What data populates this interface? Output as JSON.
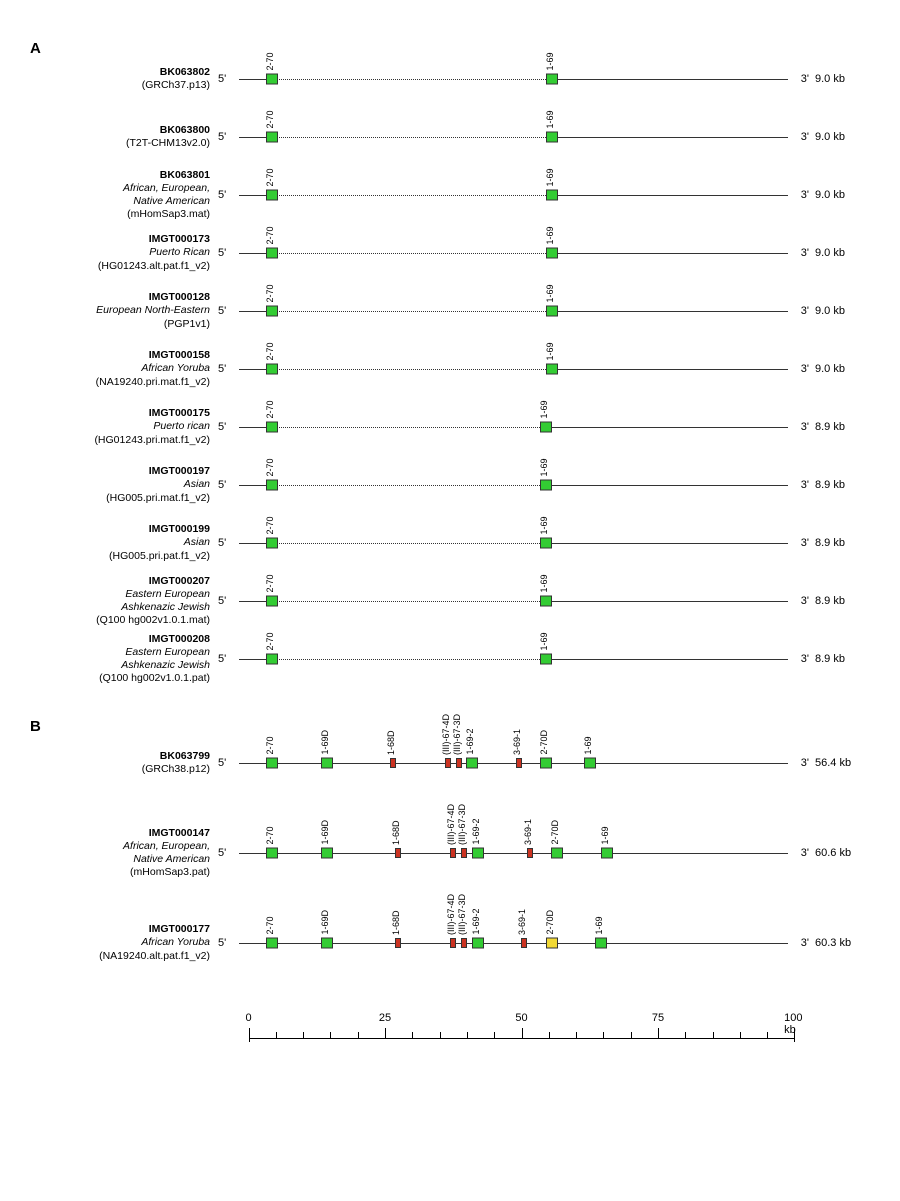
{
  "colors": {
    "functional": "#33cc33",
    "pseudo": "#cc3322",
    "orf": "#f2d935",
    "axis": "#333333"
  },
  "layout": {
    "track_left_pct": 3.5,
    "track_right_pct": 96.5,
    "kb_span": 100,
    "gene_big_w": 12,
    "gene_big_h": 11,
    "gene_sm_w": 6,
    "gene_sm_h": 10
  },
  "panelA": {
    "letter": "A",
    "rows": [
      {
        "id": "BK063802",
        "pop": "",
        "src": "(GRCh37.p13)",
        "size": "9.0 kb",
        "genes": [
          {
            "lbl": "2-70",
            "kb": 6,
            "c": "functional"
          },
          {
            "lbl": "1-69",
            "kb": 57,
            "c": "functional"
          }
        ]
      },
      {
        "id": "BK063800",
        "pop": "",
        "src": "(T2T-CHM13v2.0)",
        "size": "9.0 kb",
        "genes": [
          {
            "lbl": "2-70",
            "kb": 6,
            "c": "functional"
          },
          {
            "lbl": "1-69",
            "kb": 57,
            "c": "functional"
          }
        ]
      },
      {
        "id": "BK063801",
        "pop": "African, European,\nNative American",
        "src": "(mHomSap3.mat)",
        "size": "9.0 kb",
        "genes": [
          {
            "lbl": "2-70",
            "kb": 6,
            "c": "functional"
          },
          {
            "lbl": "1-69",
            "kb": 57,
            "c": "functional"
          }
        ]
      },
      {
        "id": "IMGT000173",
        "pop": "Puerto Rican",
        "src": "(HG01243.alt.pat.f1_v2)",
        "size": "9.0 kb",
        "genes": [
          {
            "lbl": "2-70",
            "kb": 6,
            "c": "functional"
          },
          {
            "lbl": "1-69",
            "kb": 57,
            "c": "functional"
          }
        ]
      },
      {
        "id": "IMGT000128",
        "pop": "European North-Eastern",
        "src": "(PGP1v1)",
        "size": "9.0 kb",
        "genes": [
          {
            "lbl": "2-70",
            "kb": 6,
            "c": "functional"
          },
          {
            "lbl": "1-69",
            "kb": 57,
            "c": "functional"
          }
        ]
      },
      {
        "id": "IMGT000158",
        "pop": "African Yoruba",
        "src": "(NA19240.pri.mat.f1_v2)",
        "size": "9.0 kb",
        "genes": [
          {
            "lbl": "2-70",
            "kb": 6,
            "c": "functional"
          },
          {
            "lbl": "1-69",
            "kb": 57,
            "c": "functional"
          }
        ]
      },
      {
        "id": "IMGT000175",
        "pop": "Puerto rican",
        "src": "(HG01243.pri.mat.f1_v2)",
        "size": "8.9 kb",
        "genes": [
          {
            "lbl": "2-70",
            "kb": 6,
            "c": "functional"
          },
          {
            "lbl": "1-69",
            "kb": 56,
            "c": "functional"
          }
        ]
      },
      {
        "id": "IMGT000197",
        "pop": "Asian",
        "src": "(HG005.pri.mat.f1_v2)",
        "size": "8.9 kb",
        "genes": [
          {
            "lbl": "2-70",
            "kb": 6,
            "c": "functional"
          },
          {
            "lbl": "1-69",
            "kb": 56,
            "c": "functional"
          }
        ]
      },
      {
        "id": "IMGT000199",
        "pop": "Asian",
        "src": "(HG005.pri.pat.f1_v2)",
        "size": "8.9 kb",
        "genes": [
          {
            "lbl": "2-70",
            "kb": 6,
            "c": "functional"
          },
          {
            "lbl": "1-69",
            "kb": 56,
            "c": "functional"
          }
        ]
      },
      {
        "id": "IMGT000207",
        "pop": "Eastern European\nAshkenazic Jewish",
        "src": "(Q100 hg002v1.0.1.mat)",
        "size": "8.9 kb",
        "genes": [
          {
            "lbl": "2-70",
            "kb": 6,
            "c": "functional"
          },
          {
            "lbl": "1-69",
            "kb": 56,
            "c": "functional"
          }
        ]
      },
      {
        "id": "IMGT000208",
        "pop": "Eastern European\nAshkenazic Jewish",
        "src": "(Q100 hg002v1.0.1.pat)",
        "size": "8.9 kb",
        "genes": [
          {
            "lbl": "2-70",
            "kb": 6,
            "c": "functional"
          },
          {
            "lbl": "1-69",
            "kb": 56,
            "c": "functional"
          }
        ]
      }
    ]
  },
  "panelB": {
    "letter": "B",
    "rows": [
      {
        "id": "BK063799",
        "pop": "",
        "src": "(GRCh38.p12)",
        "size": "56.4 kb",
        "genes": [
          {
            "lbl": "2-70",
            "kb": 6,
            "c": "functional"
          },
          {
            "lbl": "1-69D",
            "kb": 16,
            "c": "functional"
          },
          {
            "lbl": "1-68D",
            "kb": 28,
            "c": "pseudo",
            "sm": true
          },
          {
            "lbl": "(III)-67-4D",
            "kb": 38,
            "c": "pseudo",
            "sm": true
          },
          {
            "lbl": "(III)-67-3D",
            "kb": 40,
            "c": "pseudo",
            "sm": true
          },
          {
            "lbl": "1-69-2",
            "kb": 42.5,
            "c": "functional"
          },
          {
            "lbl": "3-69-1",
            "kb": 51,
            "c": "pseudo",
            "sm": true
          },
          {
            "lbl": "2-70D",
            "kb": 56,
            "c": "functional"
          },
          {
            "lbl": "1-69",
            "kb": 64,
            "c": "functional"
          }
        ]
      },
      {
        "id": "IMGT000147",
        "pop": "African, European,\nNative American",
        "src": "(mHomSap3.pat)",
        "size": "60.6 kb",
        "genes": [
          {
            "lbl": "2-70",
            "kb": 6,
            "c": "functional"
          },
          {
            "lbl": "1-69D",
            "kb": 16,
            "c": "functional"
          },
          {
            "lbl": "1-68D",
            "kb": 29,
            "c": "pseudo",
            "sm": true
          },
          {
            "lbl": "(III)-67-4D",
            "kb": 39,
            "c": "pseudo",
            "sm": true
          },
          {
            "lbl": "(III)-67-3D",
            "kb": 41,
            "c": "pseudo",
            "sm": true
          },
          {
            "lbl": "1-69-2",
            "kb": 43.5,
            "c": "functional"
          },
          {
            "lbl": "3-69-1",
            "kb": 53,
            "c": "pseudo",
            "sm": true
          },
          {
            "lbl": "2-70D",
            "kb": 58,
            "c": "functional"
          },
          {
            "lbl": "1-69",
            "kb": 67,
            "c": "functional"
          }
        ]
      },
      {
        "id": "IMGT000177",
        "pop": "African Yoruba",
        "src": "(NA19240.alt.pat.f1_v2)",
        "size": "60.3 kb",
        "genes": [
          {
            "lbl": "2-70",
            "kb": 6,
            "c": "functional"
          },
          {
            "lbl": "1-69D",
            "kb": 16,
            "c": "functional"
          },
          {
            "lbl": "1-68D",
            "kb": 29,
            "c": "pseudo",
            "sm": true
          },
          {
            "lbl": "(III)-67-4D",
            "kb": 39,
            "c": "pseudo",
            "sm": true
          },
          {
            "lbl": "(III)-67-3D",
            "kb": 41,
            "c": "pseudo",
            "sm": true
          },
          {
            "lbl": "1-69-2",
            "kb": 43.5,
            "c": "functional"
          },
          {
            "lbl": "3-69-1",
            "kb": 52,
            "c": "pseudo",
            "sm": true
          },
          {
            "lbl": "2-70D",
            "kb": 57,
            "c": "orf"
          },
          {
            "lbl": "1-69",
            "kb": 66,
            "c": "functional"
          }
        ]
      }
    ]
  },
  "ruler": {
    "major": [
      0,
      25,
      50,
      75,
      100
    ],
    "labels": [
      "0",
      "25",
      "50",
      "75",
      "100 kb"
    ],
    "minor": [
      5,
      10,
      15,
      20,
      30,
      35,
      40,
      45,
      55,
      60,
      65,
      70,
      80,
      85,
      90,
      95
    ]
  },
  "text": {
    "five": "5'",
    "three": "3'"
  }
}
